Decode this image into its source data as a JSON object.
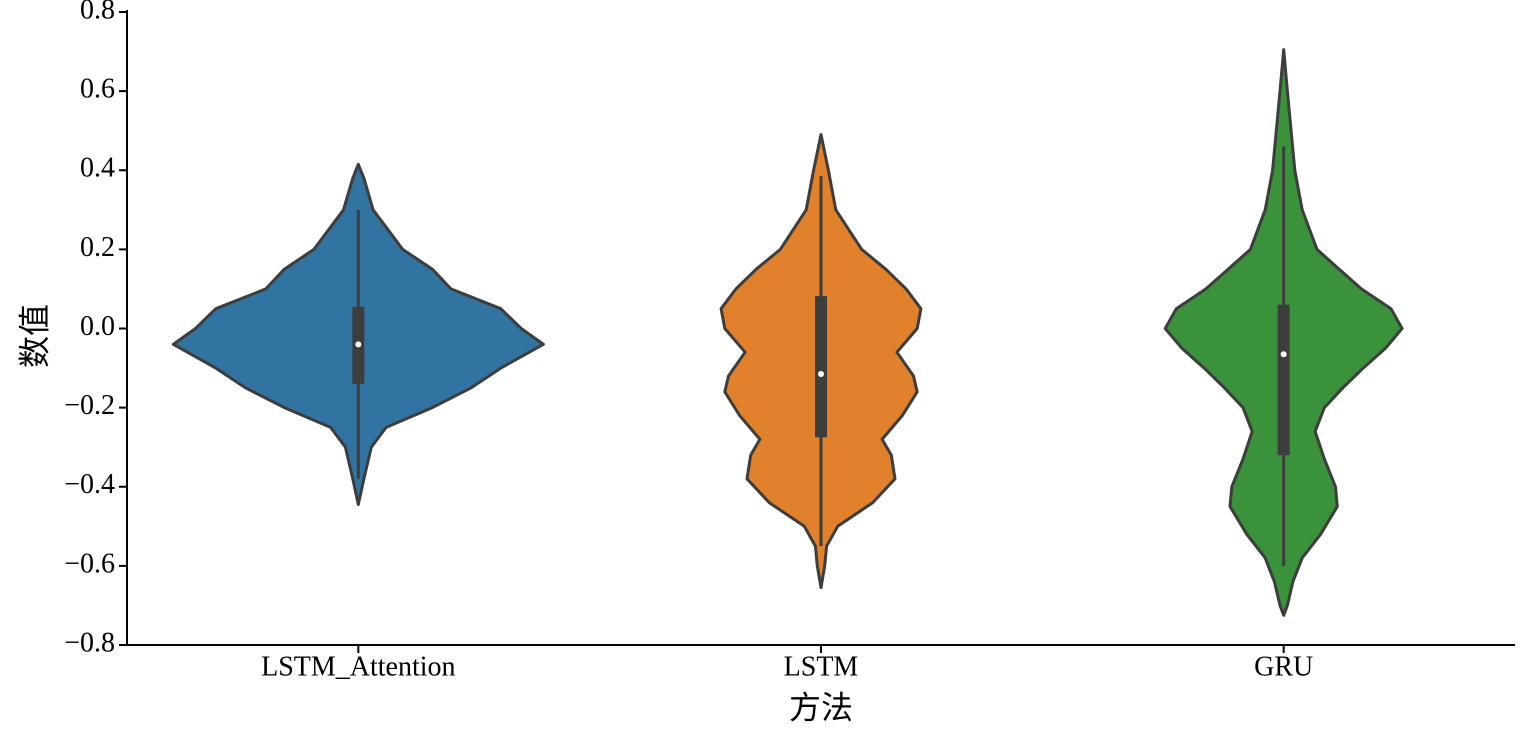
{
  "chart_data": {
    "type": "violin",
    "xlabel": "方法",
    "ylabel": "数值",
    "categories": [
      "LSTM_Attention",
      "LSTM",
      "GRU"
    ],
    "ylim": [
      -0.8,
      0.8
    ],
    "yticks": [
      {
        "value": -0.8,
        "label": "−0.8"
      },
      {
        "value": -0.6,
        "label": "−0.6"
      },
      {
        "value": -0.4,
        "label": "−0.4"
      },
      {
        "value": -0.2,
        "label": "−0.2"
      },
      {
        "value": 0.0,
        "label": "0.0"
      },
      {
        "value": 0.2,
        "label": "0.2"
      },
      {
        "value": 0.4,
        "label": "0.4"
      },
      {
        "value": 0.6,
        "label": "0.6"
      },
      {
        "value": 0.8,
        "label": "0.8"
      }
    ],
    "grid": false,
    "violins": [
      {
        "color": "#3274a1",
        "density_y": [
          0.415,
          0.38,
          0.3,
          0.2,
          0.15,
          0.1,
          0.05,
          0.0,
          -0.04,
          -0.1,
          -0.15,
          -0.2,
          -0.25,
          -0.3,
          -0.38,
          -0.445
        ],
        "density": [
          0,
          0.03,
          0.08,
          0.24,
          0.4,
          0.5,
          0.77,
          0.88,
          1.0,
          0.77,
          0.61,
          0.4,
          0.15,
          0.07,
          0.03,
          0
        ],
        "whisker_low": -0.38,
        "q1": -0.14,
        "median": -0.04,
        "q3": 0.055,
        "whisker_high": 0.3
      },
      {
        "color": "#e1812c",
        "density_y": [
          0.49,
          0.4,
          0.3,
          0.2,
          0.15,
          0.1,
          0.05,
          0.0,
          -0.06,
          -0.12,
          -0.16,
          -0.22,
          -0.28,
          -0.32,
          -0.38,
          -0.44,
          -0.5,
          -0.55,
          -0.6,
          -0.655
        ],
        "density": [
          0,
          0.04,
          0.08,
          0.22,
          0.35,
          0.46,
          0.54,
          0.52,
          0.41,
          0.5,
          0.52,
          0.44,
          0.33,
          0.38,
          0.4,
          0.28,
          0.09,
          0.03,
          0.02,
          0
        ],
        "whisker_low": -0.55,
        "q1": -0.275,
        "median": -0.115,
        "q3": 0.082,
        "whisker_high": 0.385
      },
      {
        "color": "#3a923a",
        "density_y": [
          0.705,
          0.6,
          0.5,
          0.4,
          0.3,
          0.2,
          0.15,
          0.1,
          0.05,
          0.0,
          -0.05,
          -0.1,
          -0.15,
          -0.2,
          -0.26,
          -0.33,
          -0.4,
          -0.45,
          -0.52,
          -0.58,
          -0.64,
          -0.7,
          -0.725
        ],
        "density": [
          0,
          0.02,
          0.04,
          0.06,
          0.1,
          0.18,
          0.3,
          0.42,
          0.58,
          0.64,
          0.55,
          0.43,
          0.32,
          0.22,
          0.17,
          0.22,
          0.28,
          0.29,
          0.2,
          0.1,
          0.05,
          0.02,
          0
        ],
        "whisker_low": -0.6,
        "q1": -0.32,
        "median": -0.065,
        "q3": 0.06,
        "whisker_high": 0.46
      }
    ]
  }
}
